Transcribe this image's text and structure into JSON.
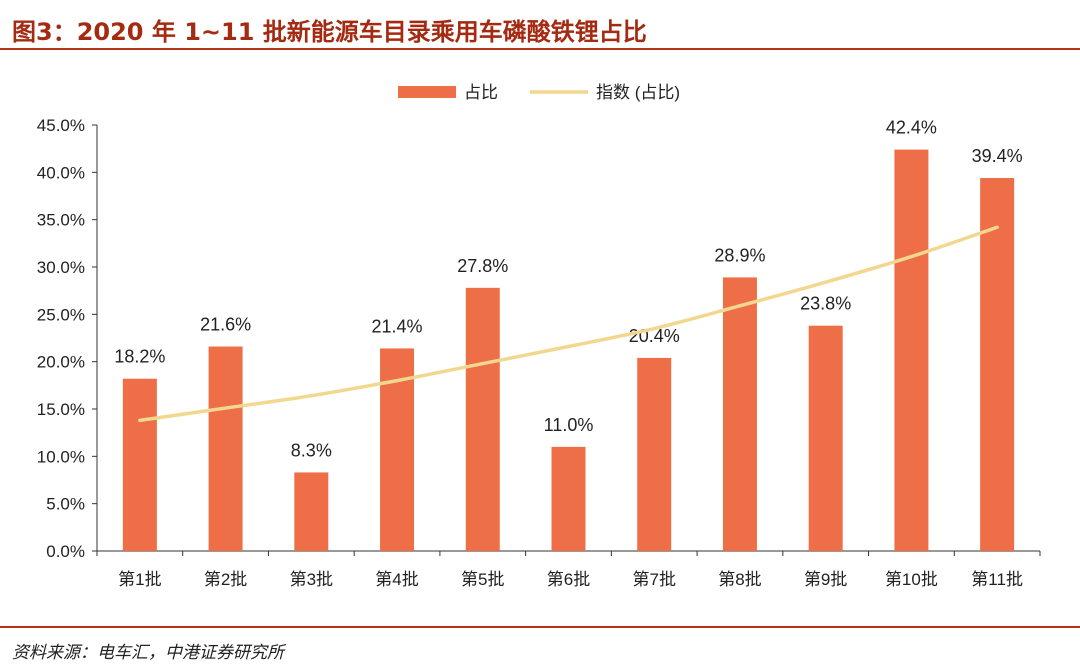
{
  "figure": {
    "title": "图3：2020 年 1~11 批新能源车目录乘用车磷酸铁锂占比",
    "source": "资料来源：电车汇，中港证券研究所"
  },
  "chart_data": {
    "type": "bar",
    "title": "",
    "xlabel": "",
    "ylabel": "",
    "ylim": [
      0,
      45
    ],
    "y_ticks": [
      "0.0%",
      "5.0%",
      "10.0%",
      "15.0%",
      "20.0%",
      "25.0%",
      "30.0%",
      "35.0%",
      "40.0%",
      "45.0%"
    ],
    "y_tick_values": [
      0,
      5,
      10,
      15,
      20,
      25,
      30,
      35,
      40,
      45
    ],
    "categories": [
      "第1批",
      "第2批",
      "第3批",
      "第4批",
      "第5批",
      "第6批",
      "第7批",
      "第8批",
      "第9批",
      "第10批",
      "第11批"
    ],
    "series": [
      {
        "name": "占比",
        "type": "bar",
        "color": "#ee6f47",
        "values": [
          18.2,
          21.6,
          8.3,
          21.4,
          27.8,
          11.0,
          20.4,
          28.9,
          23.8,
          42.4,
          39.4
        ],
        "labels": [
          "18.2%",
          "21.6%",
          "8.3%",
          "21.4%",
          "27.8%",
          "11.0%",
          "20.4%",
          "28.9%",
          "23.8%",
          "42.4%",
          "39.4%"
        ]
      },
      {
        "name": "指数 (占比)",
        "type": "line",
        "color": "#f2d88f",
        "values": [
          13.8,
          15.1,
          16.4,
          18.0,
          19.8,
          21.6,
          23.5,
          25.9,
          28.4,
          31.1,
          34.2
        ]
      }
    ],
    "grid": false,
    "legend_position": "top-center"
  }
}
